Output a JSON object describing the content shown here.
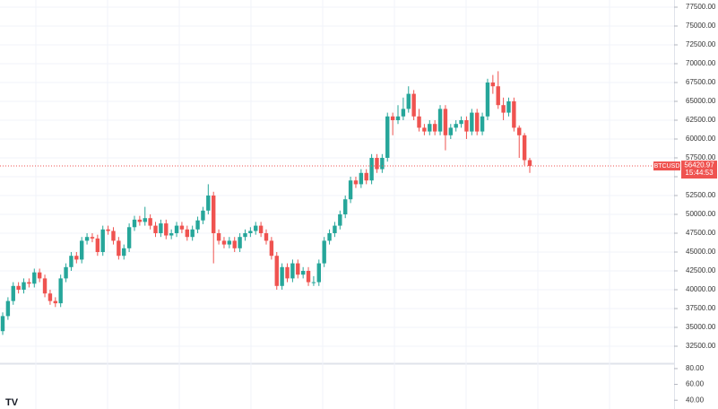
{
  "chart_data": {
    "type": "candlestick",
    "symbol": "BTCUSD",
    "last_price_label": "56420.97",
    "timer": "15:44:53",
    "up_color": "#26a69a",
    "down_color": "#ef5350",
    "ylim": [
      30238,
      78452
    ],
    "yticks": [
      {
        "value": 32500,
        "label": "32500.00"
      },
      {
        "value": 35000,
        "label": "35000.00"
      },
      {
        "value": 37500,
        "label": "37500.00"
      },
      {
        "value": 40000,
        "label": "40000.00"
      },
      {
        "value": 42500,
        "label": "42500.00"
      },
      {
        "value": 45000,
        "label": "45000.00"
      },
      {
        "value": 47500,
        "label": "47500.00"
      },
      {
        "value": 50000,
        "label": "50000.00"
      },
      {
        "value": 52500,
        "label": "52500.00"
      },
      {
        "value": 55000,
        "label": "55000.00"
      },
      {
        "value": 57500,
        "label": "57500.00"
      },
      {
        "value": 60000,
        "label": "60000.00"
      },
      {
        "value": 62500,
        "label": "62500.00"
      },
      {
        "value": 65000,
        "label": "65000.00"
      },
      {
        "value": 67500,
        "label": "67500.00"
      },
      {
        "value": 70000,
        "label": "70000.00"
      },
      {
        "value": 72500,
        "label": "72500.00"
      },
      {
        "value": 75000,
        "label": "75000.00"
      },
      {
        "value": 77500,
        "label": "77500.00"
      }
    ],
    "grid": true,
    "ohlc": [
      [
        34500,
        37000,
        34000,
        36500
      ],
      [
        36500,
        39000,
        36000,
        38500
      ],
      [
        38500,
        41000,
        38000,
        40500
      ],
      [
        40500,
        41000,
        39500,
        40000
      ],
      [
        40000,
        41500,
        39500,
        41000
      ],
      [
        41000,
        41500,
        40300,
        40800
      ],
      [
        40800,
        42800,
        40300,
        42300
      ],
      [
        42300,
        42800,
        41000,
        41500
      ],
      [
        41500,
        42000,
        39000,
        39500
      ],
      [
        39500,
        40000,
        38000,
        38500
      ],
      [
        38500,
        39000,
        37700,
        38200
      ],
      [
        38200,
        42000,
        37700,
        41500
      ],
      [
        41500,
        43500,
        41000,
        43000
      ],
      [
        43000,
        45000,
        42500,
        44500
      ],
      [
        44500,
        45000,
        43500,
        44000
      ],
      [
        44000,
        47000,
        43500,
        46500
      ],
      [
        46500,
        47500,
        46000,
        47000
      ],
      [
        47000,
        47500,
        46300,
        46800
      ],
      [
        46800,
        47300,
        44500,
        45000
      ],
      [
        45000,
        48500,
        44500,
        48000
      ],
      [
        48000,
        48500,
        47300,
        47800
      ],
      [
        47800,
        48300,
        46000,
        46500
      ],
      [
        46500,
        47000,
        44000,
        44500
      ],
      [
        44500,
        46000,
        44000,
        45500
      ],
      [
        45500,
        48800,
        45000,
        48300
      ],
      [
        48300,
        49800,
        47800,
        49300
      ],
      [
        49300,
        49800,
        48500,
        49000
      ],
      [
        49000,
        51000,
        48500,
        49500
      ],
      [
        49500,
        50000,
        48000,
        48500
      ],
      [
        48500,
        49000,
        47000,
        47500
      ],
      [
        47500,
        49300,
        47000,
        48800
      ],
      [
        48800,
        49300,
        46700,
        47200
      ],
      [
        47200,
        48000,
        46700,
        47500
      ],
      [
        47500,
        49000,
        47000,
        48500
      ],
      [
        48500,
        49000,
        47500,
        48000
      ],
      [
        48000,
        48500,
        46500,
        47000
      ],
      [
        47000,
        48500,
        46500,
        48000
      ],
      [
        48000,
        49700,
        47500,
        49200
      ],
      [
        49200,
        51000,
        48700,
        50500
      ],
      [
        50500,
        54000,
        50000,
        52500
      ],
      [
        52500,
        53000,
        43500,
        47500
      ],
      [
        47500,
        48000,
        46000,
        46500
      ],
      [
        46500,
        47000,
        45500,
        46000
      ],
      [
        46000,
        47000,
        45500,
        46500
      ],
      [
        46500,
        47000,
        45000,
        45500
      ],
      [
        45500,
        47500,
        45000,
        47000
      ],
      [
        47000,
        48000,
        46500,
        47500
      ],
      [
        47500,
        48300,
        47000,
        47800
      ],
      [
        47800,
        49000,
        47300,
        48500
      ],
      [
        48500,
        49000,
        47000,
        47500
      ],
      [
        47500,
        48000,
        46000,
        46500
      ],
      [
        46500,
        47000,
        44000,
        44500
      ],
      [
        44500,
        45000,
        40000,
        40500
      ],
      [
        40500,
        43500,
        40000,
        43000
      ],
      [
        43000,
        43500,
        41000,
        41500
      ],
      [
        41500,
        44000,
        41000,
        43500
      ],
      [
        43500,
        44000,
        41500,
        42000
      ],
      [
        42000,
        43000,
        41500,
        42500
      ],
      [
        42500,
        43000,
        40500,
        41000
      ],
      [
        41000,
        41800,
        40500,
        41000
      ],
      [
        41000,
        44000,
        40500,
        43500
      ],
      [
        43500,
        47000,
        43000,
        46500
      ],
      [
        46500,
        48000,
        46000,
        47500
      ],
      [
        47500,
        49000,
        47000,
        48500
      ],
      [
        48500,
        50500,
        48000,
        50000
      ],
      [
        50000,
        52500,
        49500,
        52000
      ],
      [
        52000,
        55000,
        51500,
        54500
      ],
      [
        54500,
        55000,
        53500,
        54000
      ],
      [
        54000,
        56000,
        53500,
        55500
      ],
      [
        55500,
        56000,
        54000,
        54500
      ],
      [
        54500,
        58000,
        54000,
        57500
      ],
      [
        57500,
        58000,
        55500,
        56000
      ],
      [
        56000,
        58000,
        55500,
        57500
      ],
      [
        57500,
        63500,
        57000,
        63000
      ],
      [
        63000,
        63500,
        60500,
        62500
      ],
      [
        62500,
        64500,
        62000,
        63000
      ],
      [
        63000,
        65500,
        62500,
        64000
      ],
      [
        64000,
        67000,
        63500,
        66000
      ],
      [
        66000,
        66500,
        62500,
        63000
      ],
      [
        63000,
        64000,
        61000,
        61500
      ],
      [
        61500,
        62000,
        60500,
        61000
      ],
      [
        61000,
        62500,
        60500,
        62000
      ],
      [
        62000,
        62500,
        60500,
        61000
      ],
      [
        61000,
        64500,
        60500,
        64000
      ],
      [
        64000,
        64500,
        58500,
        60500
      ],
      [
        60500,
        62000,
        60000,
        61500
      ],
      [
        61500,
        62500,
        61000,
        62000
      ],
      [
        62000,
        63000,
        61500,
        62500
      ],
      [
        62500,
        63000,
        60000,
        61000
      ],
      [
        61000,
        64000,
        60500,
        63500
      ],
      [
        63500,
        64000,
        60500,
        61000
      ],
      [
        61000,
        63500,
        60500,
        63000
      ],
      [
        63000,
        68000,
        62500,
        67500
      ],
      [
        67500,
        68500,
        66000,
        67000
      ],
      [
        67000,
        69000,
        64000,
        64500
      ],
      [
        64500,
        65500,
        62500,
        63500
      ],
      [
        63500,
        65500,
        63000,
        65000
      ],
      [
        65000,
        65500,
        61000,
        61500
      ],
      [
        61500,
        61800,
        57500,
        60500
      ],
      [
        60500,
        60800,
        56500,
        57200
      ],
      [
        57200,
        57500,
        55500,
        56420.97
      ]
    ],
    "indicator_pane": {
      "ylim": [
        28.9,
        85.6
      ],
      "yticks": [
        {
          "value": 80,
          "label": "80.00"
        },
        {
          "value": 60,
          "label": "60.00"
        },
        {
          "value": 40,
          "label": "40.00"
        }
      ]
    }
  }
}
